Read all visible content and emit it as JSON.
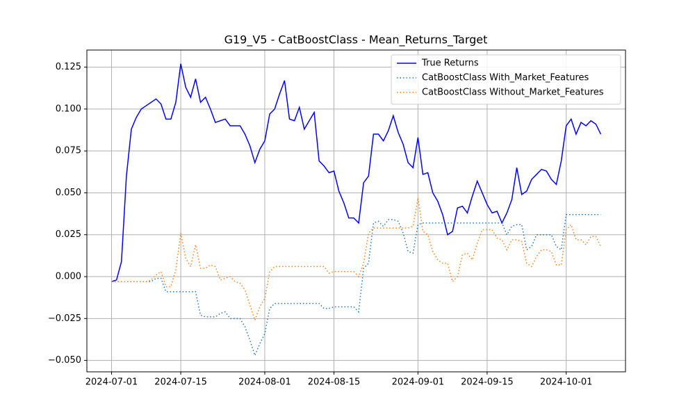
{
  "chart_data": {
    "type": "line",
    "title": "G19_V5 - CatBoostClass - Mean_Returns_Target",
    "x": [
      "2024-07-01",
      "2024-07-02",
      "2024-07-03",
      "2024-07-04",
      "2024-07-05",
      "2024-07-06",
      "2024-07-07",
      "2024-07-08",
      "2024-07-09",
      "2024-07-10",
      "2024-07-11",
      "2024-07-12",
      "2024-07-13",
      "2024-07-14",
      "2024-07-15",
      "2024-07-16",
      "2024-07-17",
      "2024-07-18",
      "2024-07-19",
      "2024-07-20",
      "2024-07-21",
      "2024-07-22",
      "2024-07-23",
      "2024-07-24",
      "2024-07-25",
      "2024-07-26",
      "2024-07-27",
      "2024-07-28",
      "2024-07-29",
      "2024-07-30",
      "2024-07-31",
      "2024-08-01",
      "2024-08-02",
      "2024-08-03",
      "2024-08-04",
      "2024-08-05",
      "2024-08-06",
      "2024-08-07",
      "2024-08-08",
      "2024-08-09",
      "2024-08-10",
      "2024-08-11",
      "2024-08-12",
      "2024-08-13",
      "2024-08-14",
      "2024-08-15",
      "2024-08-16",
      "2024-08-17",
      "2024-08-18",
      "2024-08-19",
      "2024-08-20",
      "2024-08-21",
      "2024-08-22",
      "2024-08-23",
      "2024-08-24",
      "2024-08-25",
      "2024-08-26",
      "2024-08-27",
      "2024-08-28",
      "2024-08-29",
      "2024-08-30",
      "2024-08-31",
      "2024-09-01",
      "2024-09-02",
      "2024-09-03",
      "2024-09-04",
      "2024-09-05",
      "2024-09-06",
      "2024-09-07",
      "2024-09-08",
      "2024-09-09",
      "2024-09-10",
      "2024-09-11",
      "2024-09-12",
      "2024-09-13",
      "2024-09-14",
      "2024-09-15",
      "2024-09-16",
      "2024-09-17",
      "2024-09-18",
      "2024-09-19",
      "2024-09-20",
      "2024-09-21",
      "2024-09-22",
      "2024-09-23",
      "2024-09-24",
      "2024-09-25",
      "2024-09-26",
      "2024-09-27",
      "2024-09-28",
      "2024-09-29",
      "2024-09-30",
      "2024-10-01",
      "2024-10-02",
      "2024-10-03",
      "2024-10-04",
      "2024-10-05",
      "2024-10-06",
      "2024-10-07",
      "2024-10-08"
    ],
    "series": [
      {
        "name": "True Returns",
        "color": "#0000ff",
        "dash": "solid",
        "values": [
          -0.003,
          -0.002,
          0.009,
          0.06,
          0.088,
          0.095,
          0.1,
          0.102,
          0.104,
          0.106,
          0.103,
          0.094,
          0.094,
          0.104,
          0.127,
          0.113,
          0.107,
          0.118,
          0.104,
          0.107,
          0.1,
          0.092,
          0.093,
          0.094,
          0.09,
          0.09,
          0.09,
          0.085,
          0.078,
          0.068,
          0.076,
          0.081,
          0.097,
          0.1,
          0.109,
          0.117,
          0.094,
          0.093,
          0.101,
          0.088,
          0.093,
          0.098,
          0.069,
          0.066,
          0.062,
          0.063,
          0.051,
          0.044,
          0.035,
          0.035,
          0.032,
          0.056,
          0.06,
          0.085,
          0.085,
          0.081,
          0.087,
          0.096,
          0.086,
          0.079,
          0.068,
          0.065,
          0.083,
          0.061,
          0.062,
          0.05,
          0.045,
          0.037,
          0.025,
          0.027,
          0.041,
          0.042,
          0.038,
          0.048,
          0.057,
          0.05,
          0.043,
          0.038,
          0.039,
          0.032,
          0.038,
          0.046,
          0.065,
          0.049,
          0.051,
          0.058,
          0.061,
          0.064,
          0.063,
          0.058,
          0.055,
          0.069,
          0.09,
          0.094,
          0.085,
          0.092,
          0.09,
          0.093,
          0.091,
          0.085
        ]
      },
      {
        "name": "CatBoostClass With_Market_Features",
        "color": "#1f77b4",
        "dash": "dotted",
        "values": [
          -0.003,
          -0.003,
          -0.003,
          -0.003,
          -0.003,
          -0.003,
          -0.003,
          -0.003,
          -0.003,
          -0.001,
          -0.001,
          -0.009,
          -0.009,
          -0.009,
          -0.009,
          -0.009,
          -0.009,
          -0.009,
          -0.023,
          -0.024,
          -0.024,
          -0.024,
          -0.022,
          -0.021,
          -0.025,
          -0.025,
          -0.025,
          -0.03,
          -0.038,
          -0.047,
          -0.04,
          -0.034,
          -0.019,
          -0.016,
          -0.016,
          -0.016,
          -0.016,
          -0.016,
          -0.016,
          -0.016,
          -0.016,
          -0.016,
          -0.016,
          -0.019,
          -0.019,
          -0.018,
          -0.018,
          -0.018,
          -0.018,
          -0.018,
          -0.021,
          0.005,
          0.008,
          0.032,
          0.033,
          0.03,
          0.034,
          0.034,
          0.033,
          0.026,
          0.015,
          0.014,
          0.031,
          0.032,
          0.032,
          0.032,
          0.032,
          0.032,
          0.032,
          0.032,
          0.032,
          0.032,
          0.032,
          0.032,
          0.032,
          0.032,
          0.032,
          0.032,
          0.032,
          0.032,
          0.025,
          0.03,
          0.031,
          0.031,
          0.016,
          0.018,
          0.025,
          0.025,
          0.025,
          0.025,
          0.018,
          0.016,
          0.037,
          0.037,
          0.037,
          0.037,
          0.037,
          0.037,
          0.037,
          0.037
        ]
      },
      {
        "name": "CatBoostClass Without_Market_Features",
        "color": "#ff7f0e",
        "dash": "dotted",
        "values": [
          -0.003,
          -0.003,
          -0.003,
          -0.003,
          -0.003,
          -0.003,
          -0.003,
          -0.003,
          -0.002,
          0.001,
          0.003,
          -0.006,
          -0.006,
          0.004,
          0.026,
          0.011,
          0.006,
          0.019,
          0.005,
          0.005,
          0.007,
          0.006,
          -0.002,
          -0.001,
          0.0,
          -0.003,
          -0.004,
          -0.008,
          -0.017,
          -0.026,
          -0.018,
          -0.013,
          0.003,
          0.006,
          0.006,
          0.006,
          0.006,
          0.006,
          0.006,
          0.006,
          0.006,
          0.006,
          0.006,
          0.006,
          0.002,
          0.003,
          0.003,
          0.003,
          0.003,
          0.003,
          0.0,
          0.008,
          0.026,
          0.029,
          0.029,
          0.029,
          0.029,
          0.029,
          0.029,
          0.029,
          0.029,
          0.03,
          0.047,
          0.027,
          0.025,
          0.015,
          0.01,
          0.008,
          0.008,
          -0.003,
          0.0,
          0.013,
          0.014,
          0.01,
          0.02,
          0.028,
          0.028,
          0.028,
          0.023,
          0.022,
          0.016,
          0.022,
          0.022,
          0.021,
          0.008,
          0.006,
          0.012,
          0.016,
          0.016,
          0.015,
          0.007,
          0.007,
          0.028,
          0.031,
          0.022,
          0.022,
          0.019,
          0.024,
          0.024,
          0.018
        ]
      }
    ],
    "xlim": [
      "2024-06-26",
      "2024-10-13"
    ],
    "xticks": [
      "2024-07-01",
      "2024-07-15",
      "2024-08-01",
      "2024-08-15",
      "2024-09-01",
      "2024-09-15",
      "2024-10-01"
    ],
    "ylim": [
      -0.0568,
      0.1352
    ],
    "yticks": [
      {
        "value": -0.05,
        "label": "−0.050"
      },
      {
        "value": -0.025,
        "label": "−0.025"
      },
      {
        "value": 0,
        "label": "0.000"
      },
      {
        "value": 0.025,
        "label": "0.025"
      },
      {
        "value": 0.05,
        "label": "0.050"
      },
      {
        "value": 0.075,
        "label": "0.075"
      },
      {
        "value": 0.1,
        "label": "0.100"
      },
      {
        "value": 0.125,
        "label": "0.125"
      }
    ],
    "grid": true,
    "legend": "upper right"
  }
}
